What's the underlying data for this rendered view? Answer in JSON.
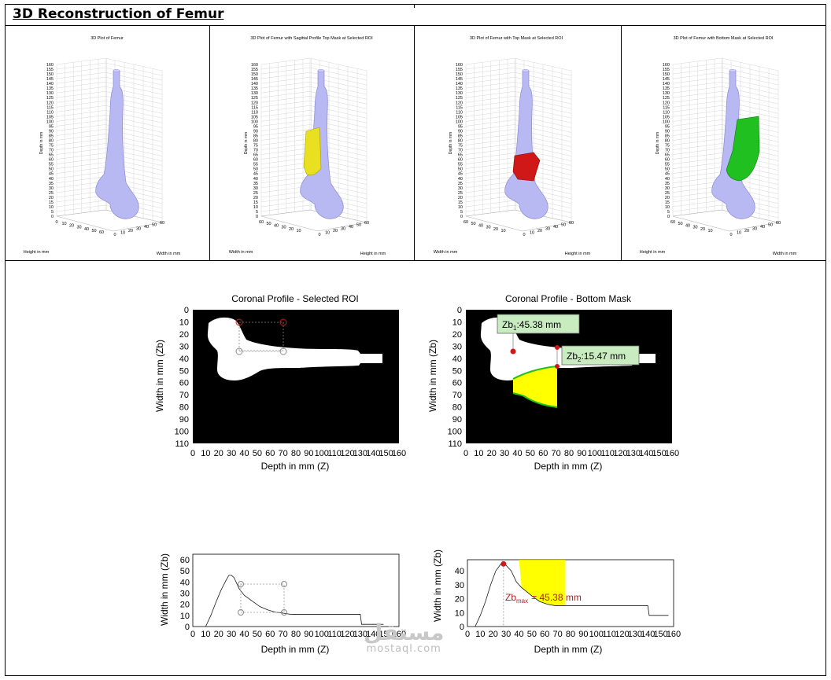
{
  "page": {
    "title": "3D Reconstruction of Femur"
  },
  "panels_3d": [
    {
      "title": "3D Plot of Femur",
      "mask": "none",
      "mask_color": "",
      "xlabel": "Height in mm",
      "ylabel": "Width in mm",
      "zlabel": "Depth in mm",
      "yticks": [
        "0",
        "10",
        "20",
        "30",
        "40",
        "50",
        "60"
      ],
      "xticks": [
        "0",
        "10",
        "20",
        "30",
        "40",
        "50",
        "60"
      ]
    },
    {
      "title": "3D Plot of Femur with Sagittal Profile Top Mask at Selected ROI",
      "mask": "sagittal",
      "mask_color": "#e8e020",
      "xlabel": "Width in mm",
      "ylabel": "Height in mm",
      "zlabel": "Depth in mm",
      "yticks": [
        "60",
        "50",
        "40",
        "30",
        "20",
        "10"
      ],
      "xticks": [
        "0",
        "10",
        "20",
        "30",
        "40",
        "50",
        "60"
      ]
    },
    {
      "title": "3D Plot of Femur with Top Mask at Selected ROI",
      "mask": "top",
      "mask_color": "#d01818",
      "xlabel": "Width in mm",
      "ylabel": "Height in mm",
      "zlabel": "Depth in mm",
      "yticks": [
        "60",
        "50",
        "40",
        "30",
        "20",
        "10"
      ],
      "xticks": [
        "0",
        "10",
        "20",
        "30",
        "40",
        "50",
        "60"
      ]
    },
    {
      "title": "3D Plot of Femur with Bottom Mask at Selected ROI",
      "mask": "bottom",
      "mask_color": "#20c020",
      "xlabel": "Height in mm",
      "ylabel": "Width in mm",
      "zlabel": "Depth in mm",
      "yticks": [
        "60",
        "50",
        "40",
        "30",
        "20",
        "10"
      ],
      "xticks": [
        "0",
        "10",
        "20",
        "30",
        "40",
        "50",
        "60"
      ]
    }
  ],
  "z_ticks": [
    "0",
    "5",
    "10",
    "15",
    "20",
    "25",
    "30",
    "35",
    "40",
    "45",
    "50",
    "55",
    "60",
    "65",
    "70",
    "75",
    "80",
    "85",
    "90",
    "95",
    "100",
    "105",
    "110",
    "115",
    "120",
    "125",
    "130",
    "135",
    "140",
    "145",
    "150",
    "155",
    "160"
  ],
  "coronal": {
    "left_title": "Coronal Profile - Selected ROI",
    "right_title": "Coronal Profile - Bottom Mask",
    "xlabel": "Depth in mm (Z)",
    "ylabel": "Width in mm (Zb)",
    "xticks": [
      "0",
      "10",
      "20",
      "30",
      "40",
      "50",
      "60",
      "70",
      "80",
      "90",
      "100",
      "110",
      "120",
      "130",
      "140",
      "150",
      "160"
    ],
    "yticks": [
      "0",
      "10",
      "20",
      "30",
      "40",
      "50",
      "60",
      "70",
      "80",
      "90",
      "100",
      "110"
    ],
    "annotation_1_base": "Zb",
    "annotation_1_sub": "1",
    "annotation_1_value": ":45.38 mm",
    "annotation_2_base": "Zb",
    "annotation_2_sub": "2",
    "annotation_2_value": ":15.47 mm",
    "fill_color": "#ffff00",
    "boundary_color": "#20c020",
    "marker_color": "#d01818"
  },
  "profile": {
    "xlabel": "Depth in mm (Z)",
    "ylabel": "Width in mm (Zb)",
    "left_yticks": [
      "0",
      "10",
      "20",
      "30",
      "40",
      "50",
      "60"
    ],
    "right_yticks": [
      "0",
      "10",
      "20",
      "30",
      "40"
    ],
    "xticks": [
      "0",
      "10",
      "20",
      "30",
      "40",
      "50",
      "60",
      "70",
      "80",
      "90",
      "100",
      "110",
      "120",
      "130",
      "140",
      "150",
      "160"
    ],
    "zbmax_base": "Zb",
    "zbmax_sub": "max",
    "zbmax_value": "= 45.38 mm"
  },
  "chart_data": [
    {
      "type": "line",
      "title": "",
      "xlabel": "Depth in mm (Z)",
      "ylabel": "Width in mm (Zb)",
      "xlim": [
        0,
        160
      ],
      "ylim": [
        0,
        65
      ],
      "series": [
        {
          "x": [
            10,
            14,
            18,
            22,
            26,
            28,
            30,
            32,
            36,
            40,
            46,
            52,
            58,
            64,
            70,
            76,
            80,
            100,
            130,
            131,
            148
          ],
          "y": [
            0,
            10,
            22,
            33,
            42,
            46,
            46,
            44,
            34,
            28,
            23,
            18,
            15,
            13,
            12,
            11,
            11,
            11,
            11,
            2,
            2
          ]
        }
      ]
    },
    {
      "type": "area",
      "title": "",
      "xlabel": "Depth in mm (Z)",
      "ylabel": "Width in mm (Zb)",
      "xlim": [
        0,
        160
      ],
      "ylim": [
        0,
        48
      ],
      "series": [
        {
          "x": [
            6,
            10,
            14,
            18,
            22,
            26,
            28,
            30,
            34,
            38,
            42,
            46,
            50,
            56,
            62,
            68,
            74,
            76,
            110,
            140,
            141,
            156
          ],
          "y": [
            0,
            8,
            18,
            30,
            40,
            45,
            45,
            44,
            40,
            32,
            28,
            25,
            22,
            18,
            16,
            15,
            15,
            15,
            15,
            15,
            8,
            8
          ]
        }
      ],
      "fill_range": [
        40,
        76
      ]
    }
  ]
}
